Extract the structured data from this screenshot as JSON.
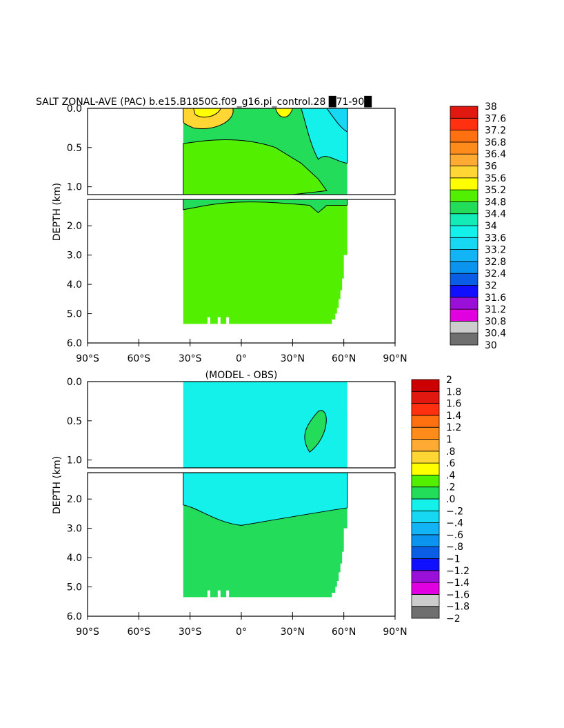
{
  "chart_data": [
    {
      "type": "heatmap",
      "title": "SALT ZONAL-AVE (PAC) b.e15.B1850G.f09_g16.pi_control.28 █71-90█",
      "ylabel": "DEPTH (km)",
      "xlabel": "",
      "x_ticks": [
        "90°S",
        "60°S",
        "30°S",
        "0°",
        "30°N",
        "60°N",
        "90°N"
      ],
      "x_tick_values": [
        -90,
        -60,
        -30,
        0,
        30,
        60,
        90
      ],
      "xlim": [
        -90,
        90
      ],
      "upper_y_ticks": [
        "0.0",
        "0.5",
        "1.0"
      ],
      "upper_y_tick_values": [
        0,
        0.5,
        1.0
      ],
      "upper_ylim": [
        0,
        1.1
      ],
      "lower_y_ticks": [
        "2.0",
        "3.0",
        "4.0",
        "5.0",
        "6.0"
      ],
      "lower_y_tick_values": [
        2,
        3,
        4,
        5,
        6
      ],
      "lower_ylim": [
        1.1,
        6.0
      ],
      "data_extent": {
        "lat_min": -34,
        "lat_max": 62,
        "depth_max": 5.35
      },
      "colorbar_labels": [
        "30",
        "30.4",
        "30.8",
        "31.2",
        "31.6",
        "32",
        "32.4",
        "32.8",
        "33.2",
        "33.6",
        "34",
        "34.4",
        "34.8",
        "35.2",
        "35.6",
        "36",
        "36.4",
        "36.8",
        "37.2",
        "37.6",
        "38"
      ],
      "colorbar_colors": [
        "#6f6f6f",
        "#cccccc",
        "#e000e0",
        "#9a10d8",
        "#1010ff",
        "#0a5ee6",
        "#0a94f0",
        "#12b4f5",
        "#16d8f2",
        "#14f0ea",
        "#14ecb8",
        "#22dc5a",
        "#52f000",
        "#ffff00",
        "#ffd633",
        "#ffaa33",
        "#ff8c1a",
        "#ff7010",
        "#ff3010",
        "#e01810"
      ],
      "regions": [
        {
          "name": "deep",
          "value_class": 12
        },
        {
          "name": "upper-green",
          "value_class": 11
        },
        {
          "name": "south-high",
          "value_class": 14
        },
        {
          "name": "north-low",
          "value_class": 9
        }
      ]
    },
    {
      "type": "heatmap",
      "title": "(MODEL - OBS)",
      "ylabel": "DEPTH (km)",
      "xlabel": "",
      "x_ticks": [
        "90°S",
        "60°S",
        "30°S",
        "0°",
        "30°N",
        "60°N",
        "90°N"
      ],
      "x_tick_values": [
        -90,
        -60,
        -30,
        0,
        30,
        60,
        90
      ],
      "xlim": [
        -90,
        90
      ],
      "upper_y_ticks": [
        "0.0",
        "0.5",
        "1.0"
      ],
      "upper_y_tick_values": [
        0,
        0.5,
        1.0
      ],
      "upper_ylim": [
        0,
        1.1
      ],
      "lower_y_ticks": [
        "2.0",
        "3.0",
        "4.0",
        "5.0",
        "6.0"
      ],
      "lower_y_tick_values": [
        2,
        3,
        4,
        5,
        6
      ],
      "lower_ylim": [
        1.1,
        6.0
      ],
      "data_extent": {
        "lat_min": -34,
        "lat_max": 62,
        "depth_max": 5.35
      },
      "colorbar_labels": [
        "−2",
        "−1.8",
        "−1.6",
        "−1.4",
        "−1.2",
        "−1",
        "−.8",
        "−.6",
        "−.4",
        "−.2",
        ".0",
        ".2",
        ".4",
        ".6",
        ".8",
        "1",
        "1.2",
        "1.4",
        "1.6",
        "1.8",
        "2"
      ],
      "colorbar_colors": [
        "#6f6f6f",
        "#cccccc",
        "#e000e0",
        "#9a10d8",
        "#1010ff",
        "#0a5ee6",
        "#0a94f0",
        "#12b4f5",
        "#16d8f2",
        "#14f0ea",
        "#22dc5a",
        "#52f000",
        "#ffff00",
        "#ffd633",
        "#ffaa33",
        "#ff8c1a",
        "#ff7010",
        "#ff3010",
        "#e01810",
        "#cc0000"
      ],
      "regions": [
        {
          "name": "diff-negative",
          "value_class": 9
        },
        {
          "name": "diff-positive",
          "value_class": 10
        }
      ]
    }
  ]
}
